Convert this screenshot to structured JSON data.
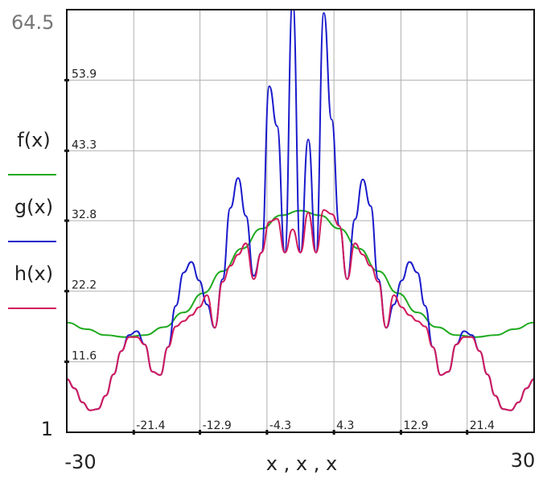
{
  "chart_data": {
    "type": "line",
    "xlabel": "x , x , x",
    "xlim": [
      -30,
      30
    ],
    "ylim": [
      1,
      64.5
    ],
    "x_min_label": "-30",
    "x_max_label": "30",
    "y_min_label": "1",
    "y_max_label": "64.5",
    "x_ticks": [
      -21.4,
      -12.9,
      -4.3,
      4.3,
      12.9,
      21.4
    ],
    "x_tick_labels": [
      "-21.4",
      "-12.9",
      "-4.3",
      "4.3",
      "12.9",
      "21.4"
    ],
    "y_ticks": [
      11.6,
      22.2,
      32.8,
      43.3,
      53.9
    ],
    "y_tick_labels": [
      "11.6",
      "22.2",
      "32.8",
      "43.3",
      "53.9"
    ],
    "grid": true,
    "legend_position": "left",
    "series": [
      {
        "name": "f(x)",
        "color": "#1faa1f",
        "x": [
          -30,
          -27.5,
          -25,
          -22.5,
          -20,
          -17.5,
          -15,
          -12.5,
          -10,
          -7.5,
          -5,
          -2.5,
          0,
          2.5,
          5,
          7.5,
          10,
          12.5,
          15,
          17.5,
          20,
          22.5,
          25,
          27.5,
          30
        ],
        "y": [
          17.5,
          16.5,
          15.6,
          15.3,
          15.6,
          16.8,
          19.0,
          21.9,
          25.2,
          28.6,
          31.6,
          33.6,
          34.3,
          33.6,
          31.6,
          28.6,
          25.2,
          21.9,
          19.0,
          16.8,
          15.6,
          15.3,
          15.6,
          16.5,
          17.5
        ]
      },
      {
        "name": "g(x)",
        "color": "#1a1acc",
        "x": [
          -30,
          -29,
          -28,
          -27,
          -26,
          -25,
          -24,
          -23,
          -22,
          -21,
          -20,
          -19,
          -18,
          -17,
          -16,
          -15,
          -14,
          -13,
          -12,
          -11,
          -10,
          -9,
          -8,
          -7,
          -6,
          -5,
          -4,
          -3,
          -2,
          -1,
          0,
          1,
          2,
          3,
          4,
          5,
          6,
          7,
          8,
          9,
          10,
          11,
          12,
          13,
          14,
          15,
          16,
          17,
          18,
          19,
          20,
          21,
          22,
          23,
          24,
          25,
          26,
          27,
          28,
          29,
          30
        ],
        "y": [
          9.0,
          7.6,
          5.5,
          4.3,
          4.5,
          6.5,
          9.7,
          13.2,
          15.6,
          16.2,
          14.2,
          10.1,
          9.6,
          13.8,
          20.0,
          25.0,
          26.6,
          23.8,
          20.2,
          16.7,
          24.0,
          34.7,
          39.2,
          33.5,
          24.5,
          28.0,
          53.0,
          47.0,
          28.0,
          66.0,
          28.0,
          45.0,
          28.0,
          64.0,
          48.0,
          32.0,
          24.0,
          33.0,
          39.0,
          35.0,
          24.0,
          16.7,
          20.2,
          23.8,
          26.6,
          25.0,
          20.0,
          13.8,
          9.6,
          10.1,
          14.2,
          16.2,
          15.6,
          13.2,
          9.7,
          6.5,
          4.5,
          4.3,
          5.5,
          7.6,
          9.0
        ]
      },
      {
        "name": "h(x)",
        "color": "#d11a5c",
        "x": [
          -30,
          -29,
          -28,
          -27,
          -26,
          -25,
          -24,
          -23,
          -22,
          -21,
          -20,
          -19,
          -18,
          -17,
          -16,
          -15,
          -14,
          -13,
          -12,
          -11,
          -10,
          -9,
          -8,
          -7,
          -6,
          -5,
          -4,
          -3,
          -2,
          -1,
          0,
          1,
          2,
          3,
          4,
          5,
          6,
          7,
          8,
          9,
          10,
          11,
          12,
          13,
          14,
          15,
          16,
          17,
          18,
          19,
          20,
          21,
          22,
          23,
          24,
          25,
          26,
          27,
          28,
          29,
          30
        ],
        "y": [
          9.0,
          7.6,
          5.5,
          4.3,
          4.5,
          6.5,
          9.7,
          13.2,
          15.3,
          15.3,
          14.2,
          10.1,
          9.6,
          13.8,
          16.9,
          17.7,
          18.6,
          19.8,
          21.6,
          16.7,
          23.6,
          26.0,
          27.7,
          29.4,
          24.0,
          28.0,
          32.6,
          33.1,
          28.0,
          31.5,
          28.0,
          34.0,
          28.0,
          34.4,
          33.8,
          32.0,
          24.0,
          29.4,
          27.7,
          26.0,
          23.6,
          16.7,
          21.6,
          19.8,
          18.6,
          17.7,
          16.9,
          13.8,
          9.6,
          10.1,
          14.2,
          15.3,
          15.3,
          13.2,
          9.7,
          6.5,
          4.5,
          4.3,
          5.5,
          7.6,
          9.0
        ]
      }
    ]
  }
}
